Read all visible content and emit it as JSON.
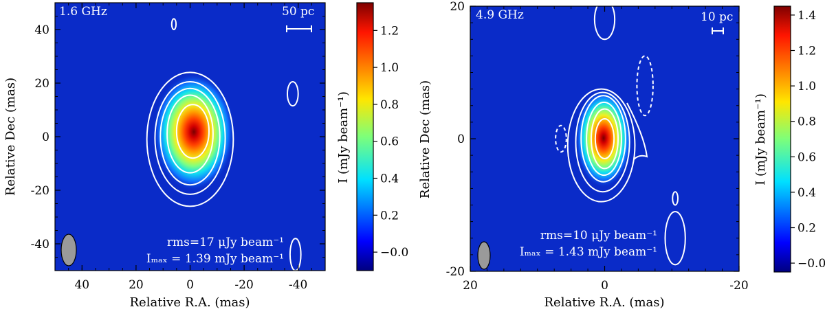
{
  "chart_data": [
    {
      "type": "heatmap",
      "frequency_label": "1.6 GHz",
      "scalebar_label": "50 pc",
      "rms_label": "rms=17 μJy beam⁻¹",
      "imax_label": "Iₘₐₓ = 1.39 mJy beam⁻¹",
      "xlabel": "Relative R.A. (mas)",
      "ylabel": "Relative Dec (mas)",
      "xlim": [
        50,
        -50
      ],
      "ylim": [
        -50,
        50
      ],
      "xticks": [
        40,
        20,
        0,
        -20,
        -40
      ],
      "yticks": [
        40,
        20,
        0,
        -20,
        -40
      ],
      "colorbar": {
        "label": "I (mJy beam⁻¹)",
        "range": [
          -0.1,
          1.35
        ],
        "ticks": [
          "−0.0",
          "0.2",
          "0.4",
          "0.6",
          "0.8",
          "1.0",
          "1.2"
        ],
        "tick_values": [
          0.0,
          0.2,
          0.4,
          0.6,
          0.8,
          1.0,
          1.2
        ]
      },
      "source": {
        "peak_ra": -1,
        "peak_dec": 2,
        "peak_value": 1.39,
        "sigma_ra": 5.5,
        "sigma_dec": 8
      },
      "contours_mas": [
        {
          "kind": "outer",
          "ra": 0,
          "dec": -1,
          "half_w": 16,
          "half_h": 25
        },
        {
          "kind": "level",
          "ra": 0,
          "dec": -0.5,
          "half_w": 13,
          "half_h": 21
        },
        {
          "kind": "level",
          "ra": 0,
          "dec": 0,
          "half_w": 11,
          "half_h": 18
        },
        {
          "kind": "level",
          "ra": 0,
          "dec": 1,
          "half_w": 8.5,
          "half_h": 14.5
        },
        {
          "kind": "level",
          "ra": -1,
          "dec": 2,
          "half_w": 6,
          "half_h": 10
        },
        {
          "kind": "blob",
          "ra": 6,
          "dec": 42,
          "half_w": 0.8,
          "half_h": 2
        },
        {
          "kind": "blob",
          "ra": -38,
          "dec": 16,
          "half_w": 2,
          "half_h": 4.5
        },
        {
          "kind": "blob",
          "ra": -39,
          "dec": -44,
          "half_w": 2,
          "half_h": 6
        }
      ],
      "beam_mas": {
        "ra": 44,
        "dec": -43,
        "half_w": 2.8,
        "half_h": 6
      }
    },
    {
      "type": "heatmap",
      "frequency_label": "4.9 GHz",
      "scalebar_label": "10 pc",
      "rms_label": "rms=10 μJy beam⁻¹",
      "imax_label": "Iₘₐₓ = 1.43 mJy beam⁻¹",
      "xlabel": "Relative R.A. (mas)",
      "ylabel": "Relative Dec (mas)",
      "xlim": [
        20,
        -20
      ],
      "ylim": [
        -20,
        20
      ],
      "xticks": [
        20,
        0,
        -20
      ],
      "yticks": [
        20,
        0,
        -20
      ],
      "colorbar": {
        "label": "I (mJy beam⁻¹)",
        "range": [
          -0.05,
          1.45
        ],
        "ticks": [
          "−0.0",
          "0.2",
          "0.4",
          "0.6",
          "0.8",
          "1.0",
          "1.2",
          "1.4"
        ],
        "tick_values": [
          0.0,
          0.2,
          0.4,
          0.6,
          0.8,
          1.0,
          1.2,
          1.4
        ]
      },
      "source": {
        "peak_ra": 0,
        "peak_dec": 0,
        "peak_value": 1.43,
        "sigma_ra": 1.6,
        "sigma_dec": 2.6
      },
      "contours_mas": [
        {
          "kind": "level",
          "ra": 0.5,
          "dec": -1,
          "half_w": 5,
          "half_h": 8.5
        },
        {
          "kind": "level",
          "ra": 0.3,
          "dec": -0.5,
          "half_w": 4,
          "half_h": 7.5
        },
        {
          "kind": "level",
          "ra": 0.2,
          "dec": 0,
          "half_w": 3.3,
          "half_h": 6.5
        },
        {
          "kind": "level",
          "ra": 0.1,
          "dec": 0,
          "half_w": 2.6,
          "half_h": 5.5
        },
        {
          "kind": "level",
          "ra": 0,
          "dec": 0,
          "half_w": 2,
          "half_h": 4.5
        },
        {
          "kind": "level",
          "ra": 0,
          "dec": 0,
          "half_w": 1.4,
          "half_h": 3
        },
        {
          "kind": "blob",
          "ra": 0,
          "dec": 18,
          "half_w": 1.5,
          "half_h": 3
        },
        {
          "kind": "blob",
          "ra": -10.5,
          "dec": -15,
          "half_w": 1.5,
          "half_h": 4
        },
        {
          "kind": "blob",
          "ra": -10.5,
          "dec": -9,
          "half_w": 0.4,
          "half_h": 1
        },
        {
          "kind": "dashed",
          "ra": -6,
          "dec": 8,
          "half_w": 1.2,
          "half_h": 4.5
        },
        {
          "kind": "dashed",
          "ra": 6.5,
          "dec": 0,
          "half_w": 0.8,
          "half_h": 2
        }
      ],
      "beam_mas": {
        "ra": 18,
        "dec": -17.5,
        "half_w": 1,
        "half_h": 2.2
      }
    }
  ],
  "colors": {
    "map_background": "#0a2bc8",
    "contour": "#ffffff",
    "beam_fill": "#9a9a9a"
  }
}
